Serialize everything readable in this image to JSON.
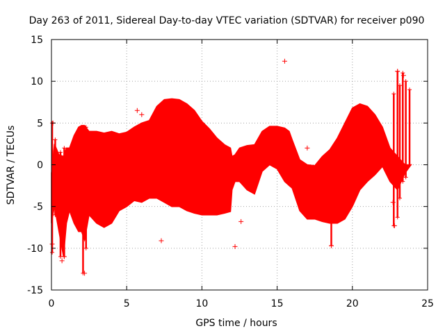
{
  "chart_data": {
    "type": "scatter",
    "title": "Day 263 of 2011, Sidereal Day-to-day VTEC variation (SDTVAR) for receiver p090",
    "xlabel": "GPS time / hours",
    "ylabel": "SDTVAR / TECUs",
    "xlim": [
      0,
      25
    ],
    "ylim": [
      -15,
      15
    ],
    "xticks": [
      "0",
      "5",
      "10",
      "15",
      "20",
      "25"
    ],
    "yticks": [
      "15",
      "10",
      "5",
      "0",
      "-5",
      "-10",
      "-15"
    ],
    "xtick_values": [
      0,
      5,
      10,
      15,
      20,
      25
    ],
    "ytick_values": [
      15,
      10,
      5,
      0,
      -5,
      -10,
      -15
    ],
    "grid": true,
    "marker": "+",
    "series_color": "#ff0000",
    "series": [
      {
        "name": "SDTVAR p090",
        "envelope": {
          "x": [
            0,
            0.2,
            0.5,
            0.8,
            1.0,
            1.2,
            1.5,
            1.8,
            2.0,
            2.2,
            2.5,
            3.0,
            3.5,
            4.0,
            4.5,
            5.0,
            5.5,
            6.0,
            6.5,
            7.0,
            7.5,
            8.0,
            8.5,
            9.0,
            9.5,
            10.0,
            10.5,
            11.0,
            11.5,
            11.9,
            12.0,
            12.2,
            12.5,
            13.0,
            13.5,
            14.0,
            14.5,
            15.0,
            15.5,
            15.8,
            16.0,
            16.5,
            17.0,
            17.5,
            18.0,
            18.5,
            19.0,
            19.5,
            20.0,
            20.5,
            21.0,
            21.5,
            22.0,
            22.5,
            23.0,
            23.5,
            23.9
          ],
          "upper": [
            -1.0,
            2.5,
            1.2,
            1.0,
            2.0,
            2.0,
            3.5,
            4.5,
            4.7,
            4.7,
            4.0,
            4.0,
            3.8,
            4.0,
            3.7,
            3.9,
            4.5,
            5.0,
            5.3,
            7.0,
            7.8,
            7.9,
            7.8,
            7.3,
            6.5,
            5.2,
            4.3,
            3.2,
            2.4,
            2.0,
            1.0,
            1.2,
            2.0,
            2.3,
            2.4,
            4.0,
            4.6,
            4.6,
            4.4,
            4.0,
            3.0,
            0.6,
            0.0,
            -0.1,
            1.0,
            1.8,
            3.2,
            5.0,
            6.8,
            7.3,
            7.0,
            6.0,
            4.5,
            2.0,
            1.0,
            0.0,
            0.0
          ],
          "lower": [
            -7.0,
            -5.0,
            -8.0,
            -11.0,
            -7.0,
            -5.5,
            -7.0,
            -8.0,
            -8.0,
            -9.0,
            -6.0,
            -7.0,
            -7.5,
            -7.0,
            -5.5,
            -5.0,
            -4.3,
            -4.5,
            -4.0,
            -4.0,
            -4.5,
            -5.0,
            -5.0,
            -5.5,
            -5.8,
            -6.0,
            -6.0,
            -6.0,
            -5.8,
            -5.6,
            -3.0,
            -2.0,
            -2.0,
            -3.0,
            -3.5,
            -0.8,
            0.0,
            -0.5,
            -2.0,
            -2.5,
            -2.8,
            -5.5,
            -6.5,
            -6.5,
            -6.8,
            -7.0,
            -7.0,
            -6.5,
            -5.0,
            -3.0,
            -2.0,
            -1.2,
            -0.2,
            -2.0,
            -3.0,
            -1.0,
            0.0
          ]
        },
        "outliers": [
          {
            "x": 15.5,
            "y": 12.4
          },
          {
            "x": 5.7,
            "y": 6.5
          },
          {
            "x": 6.0,
            "y": 6.0
          },
          {
            "x": 7.3,
            "y": -9.1
          },
          {
            "x": 2.2,
            "y": -13.0
          },
          {
            "x": 0.7,
            "y": -11.5
          },
          {
            "x": 0.85,
            "y": -11.0
          },
          {
            "x": 18.6,
            "y": -9.7
          },
          {
            "x": 22.8,
            "y": -7.3
          },
          {
            "x": 23.0,
            "y": 11.2
          },
          {
            "x": 23.4,
            "y": 10.7
          },
          {
            "x": 12.2,
            "y": -9.8
          },
          {
            "x": 12.6,
            "y": -6.8
          },
          {
            "x": 17.0,
            "y": 2.0
          },
          {
            "x": 16.3,
            "y": -1.5
          },
          {
            "x": 0.05,
            "y": -9.5
          },
          {
            "x": 0.1,
            "y": 5.0
          },
          {
            "x": 22.7,
            "y": -4.5
          }
        ],
        "spikes": [
          {
            "x": 0.05,
            "y0": -10.5,
            "y1": 5.0
          },
          {
            "x": 0.25,
            "y0": -6.0,
            "y1": 3.0
          },
          {
            "x": 0.6,
            "y0": -11.0,
            "y1": 1.5
          },
          {
            "x": 0.85,
            "y0": -11.0,
            "y1": 2.0
          },
          {
            "x": 2.1,
            "y0": -13.0,
            "y1": 4.0
          },
          {
            "x": 2.3,
            "y0": -10.0,
            "y1": 4.5
          },
          {
            "x": 18.6,
            "y0": -9.7,
            "y1": -6.5
          },
          {
            "x": 22.75,
            "y0": -7.3,
            "y1": 8.5
          },
          {
            "x": 23.0,
            "y0": -6.3,
            "y1": 11.2
          },
          {
            "x": 23.15,
            "y0": -4.0,
            "y1": 9.5
          },
          {
            "x": 23.35,
            "y0": -2.0,
            "y1": 11.0
          },
          {
            "x": 23.55,
            "y0": -1.5,
            "y1": 10.0
          },
          {
            "x": 23.8,
            "y0": 0.0,
            "y1": 9.0
          }
        ]
      }
    ]
  }
}
